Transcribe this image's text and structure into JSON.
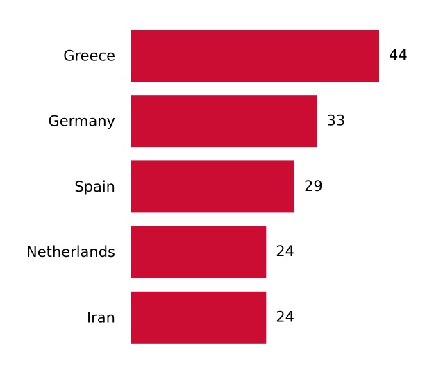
{
  "chart_data": {
    "type": "barh",
    "categories": [
      "Greece",
      "Germany",
      "Spain",
      "Netherlands",
      "Iran"
    ],
    "values": [
      44,
      33,
      29,
      24,
      24
    ],
    "color": "#cb0c33"
  }
}
